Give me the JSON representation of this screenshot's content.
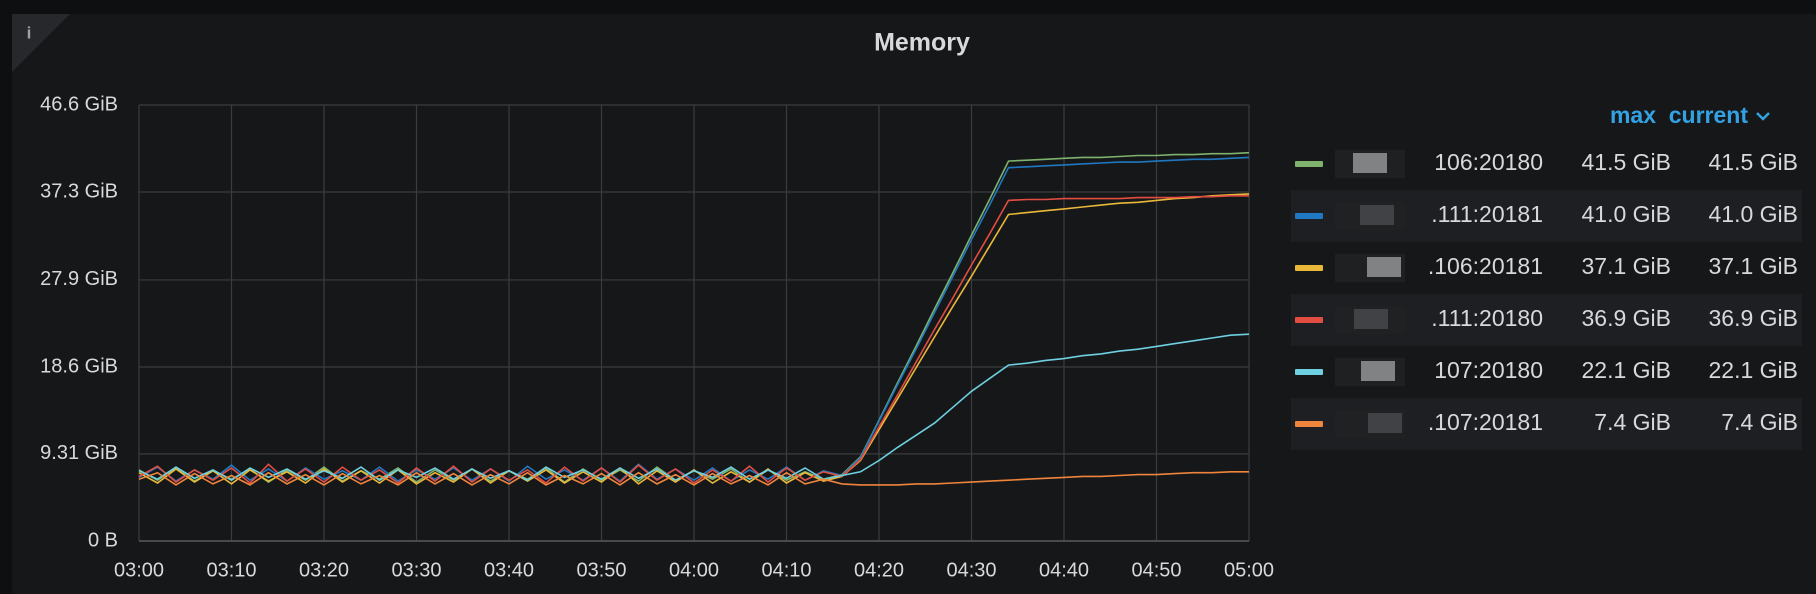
{
  "panel_info": "i",
  "chart_data": {
    "type": "line",
    "title": "Memory",
    "x": [
      "03:00",
      "03:02",
      "03:04",
      "03:06",
      "03:08",
      "03:10",
      "03:12",
      "03:14",
      "03:16",
      "03:18",
      "03:20",
      "03:22",
      "03:24",
      "03:26",
      "03:28",
      "03:30",
      "03:32",
      "03:34",
      "03:36",
      "03:38",
      "03:40",
      "03:42",
      "03:44",
      "03:46",
      "03:48",
      "03:50",
      "03:52",
      "03:54",
      "03:56",
      "03:58",
      "04:00",
      "04:02",
      "04:04",
      "04:06",
      "04:08",
      "04:10",
      "04:12",
      "04:14",
      "04:16",
      "04:18",
      "04:20",
      "04:22",
      "04:24",
      "04:26",
      "04:28",
      "04:30",
      "04:32",
      "04:34",
      "04:36",
      "04:38",
      "04:40",
      "04:42",
      "04:44",
      "04:46",
      "04:48",
      "04:50",
      "04:52",
      "04:54",
      "04:56",
      "04:58",
      "05:00"
    ],
    "xlim": [
      "03:00",
      "05:00"
    ],
    "xticks": [
      "03:00",
      "03:10",
      "03:20",
      "03:30",
      "03:40",
      "03:50",
      "04:00",
      "04:10",
      "04:20",
      "04:30",
      "04:40",
      "04:50",
      "05:00"
    ],
    "ylim": [
      0,
      46.6
    ],
    "yticks": [
      {
        "value": 0,
        "label": "0 B"
      },
      {
        "value": 9.31,
        "label": "9.31 GiB"
      },
      {
        "value": 18.6,
        "label": "18.6 GiB"
      },
      {
        "value": 27.9,
        "label": "27.9 GiB"
      },
      {
        "value": 37.3,
        "label": "37.3 GiB"
      },
      {
        "value": 46.6,
        "label": "46.6 GiB"
      }
    ],
    "grid": true,
    "legend": {
      "position": "right",
      "columns": [
        "max",
        "current"
      ]
    },
    "series": [
      {
        "name": "106:20180",
        "color": "#7eb26d",
        "max": {
          "value": 41.5,
          "label": "41.5 GiB"
        },
        "current": {
          "value": 41.5,
          "label": "41.5 GiB"
        },
        "values": [
          7.6,
          6.5,
          7.8,
          6.4,
          7.5,
          6.6,
          7.7,
          6.3,
          7.6,
          6.5,
          7.9,
          6.4,
          7.5,
          6.6,
          7.8,
          6.3,
          7.6,
          6.5,
          7.7,
          6.4,
          7.5,
          6.6,
          7.8,
          6.3,
          7.7,
          6.5,
          7.6,
          6.4,
          7.9,
          6.5,
          7.5,
          6.6,
          7.7,
          6.3,
          7.6,
          6.5,
          7.4,
          6.6,
          7.1,
          9.0,
          12.9,
          16.9,
          20.8,
          24.8,
          28.7,
          32.7,
          36.6,
          40.6,
          40.7,
          40.8,
          40.9,
          41.0,
          41.0,
          41.1,
          41.2,
          41.2,
          41.3,
          41.3,
          41.4,
          41.4,
          41.5
        ]
      },
      {
        "name": ".111:20181",
        "color": "#1f78c1",
        "max": {
          "value": 41.0,
          "label": "41.0 GiB"
        },
        "current": {
          "value": 41.0,
          "label": "41.0 GiB"
        },
        "values": [
          6.8,
          7.9,
          6.4,
          7.6,
          6.6,
          8.1,
          6.5,
          7.7,
          6.4,
          7.8,
          6.6,
          7.5,
          6.5,
          7.9,
          6.4,
          7.6,
          6.6,
          7.8,
          6.5,
          7.7,
          6.4,
          8.0,
          6.6,
          7.6,
          6.5,
          7.8,
          6.4,
          8.2,
          6.6,
          7.7,
          6.5,
          7.8,
          6.4,
          7.6,
          6.6,
          7.9,
          6.5,
          7.5,
          7.0,
          8.9,
          12.8,
          16.7,
          20.5,
          24.4,
          28.3,
          32.2,
          36.0,
          39.9,
          40.0,
          40.1,
          40.2,
          40.3,
          40.4,
          40.5,
          40.5,
          40.6,
          40.7,
          40.8,
          40.8,
          40.9,
          41.0
        ]
      },
      {
        "name": ".106:20181",
        "color": "#eab839",
        "max": {
          "value": 37.1,
          "label": "37.1 GiB"
        },
        "current": {
          "value": 37.1,
          "label": "37.1 GiB"
        },
        "values": [
          7.3,
          6.2,
          7.7,
          6.3,
          7.5,
          6.1,
          7.6,
          6.4,
          7.4,
          6.2,
          7.7,
          6.3,
          7.5,
          6.2,
          7.6,
          6.1,
          7.3,
          6.3,
          7.7,
          6.2,
          7.5,
          6.4,
          7.6,
          6.2,
          7.4,
          6.3,
          7.8,
          6.1,
          7.5,
          6.3,
          7.6,
          6.2,
          7.4,
          6.3,
          7.7,
          6.2,
          7.3,
          6.4,
          6.9,
          8.6,
          11.9,
          15.2,
          18.5,
          21.8,
          25.1,
          28.3,
          31.6,
          34.9,
          35.1,
          35.3,
          35.5,
          35.7,
          35.9,
          36.1,
          36.2,
          36.4,
          36.6,
          36.7,
          36.9,
          37.0,
          37.1
        ]
      },
      {
        "name": ".111:20180",
        "color": "#e24d42",
        "max": {
          "value": 36.9,
          "label": "36.9 GiB"
        },
        "current": {
          "value": 36.9,
          "label": "36.9 GiB"
        },
        "values": [
          6.9,
          8.0,
          6.3,
          7.6,
          6.5,
          7.8,
          6.2,
          8.2,
          6.4,
          7.7,
          6.3,
          7.9,
          6.5,
          7.6,
          6.2,
          7.8,
          6.4,
          8.0,
          6.3,
          7.7,
          6.5,
          7.6,
          6.2,
          7.9,
          6.4,
          7.8,
          6.3,
          8.1,
          6.5,
          7.7,
          6.2,
          7.6,
          6.4,
          8.0,
          6.3,
          7.8,
          6.5,
          7.4,
          6.9,
          8.7,
          12.2,
          15.6,
          19.1,
          22.6,
          26.0,
          29.5,
          32.9,
          36.4,
          36.5,
          36.5,
          36.6,
          36.6,
          36.6,
          36.6,
          36.7,
          36.7,
          36.7,
          36.8,
          36.8,
          36.9,
          36.9
        ]
      },
      {
        "name": "107:20180",
        "color": "#6ed0e0",
        "max": {
          "value": 22.1,
          "label": "22.1 GiB"
        },
        "current": {
          "value": 22.1,
          "label": "22.1 GiB"
        },
        "values": [
          7.5,
          6.6,
          7.9,
          6.7,
          7.6,
          6.5,
          7.8,
          6.8,
          7.7,
          6.6,
          7.5,
          6.7,
          7.9,
          6.5,
          7.6,
          6.8,
          7.8,
          6.6,
          7.7,
          6.7,
          7.5,
          6.5,
          7.9,
          6.8,
          7.6,
          6.6,
          7.8,
          6.7,
          7.7,
          6.5,
          7.5,
          6.8,
          7.9,
          6.6,
          7.6,
          6.7,
          7.8,
          6.6,
          7.0,
          7.4,
          8.6,
          10.0,
          11.3,
          12.6,
          14.3,
          16.0,
          17.4,
          18.8,
          19.0,
          19.3,
          19.5,
          19.8,
          20.0,
          20.3,
          20.5,
          20.8,
          21.1,
          21.4,
          21.7,
          22.0,
          22.1
        ]
      },
      {
        "name": ".107:20181",
        "color": "#ef843c",
        "max": {
          "value": 7.4,
          "label": "7.4 GiB"
        },
        "current": {
          "value": 7.4,
          "label": "7.4 GiB"
        },
        "values": [
          6.6,
          7.3,
          6.0,
          7.2,
          6.1,
          7.0,
          6.0,
          7.3,
          6.1,
          7.1,
          6.0,
          7.2,
          6.1,
          7.0,
          6.0,
          7.3,
          6.1,
          7.2,
          6.0,
          7.1,
          6.1,
          7.3,
          6.0,
          7.0,
          6.1,
          7.2,
          6.0,
          7.3,
          6.1,
          7.1,
          6.0,
          7.2,
          6.1,
          7.0,
          6.0,
          7.3,
          6.1,
          6.6,
          6.1,
          6.0,
          6.0,
          6.0,
          6.1,
          6.1,
          6.2,
          6.3,
          6.4,
          6.5,
          6.6,
          6.7,
          6.8,
          6.9,
          6.9,
          7.0,
          7.1,
          7.1,
          7.2,
          7.3,
          7.3,
          7.4,
          7.4
        ]
      }
    ]
  }
}
